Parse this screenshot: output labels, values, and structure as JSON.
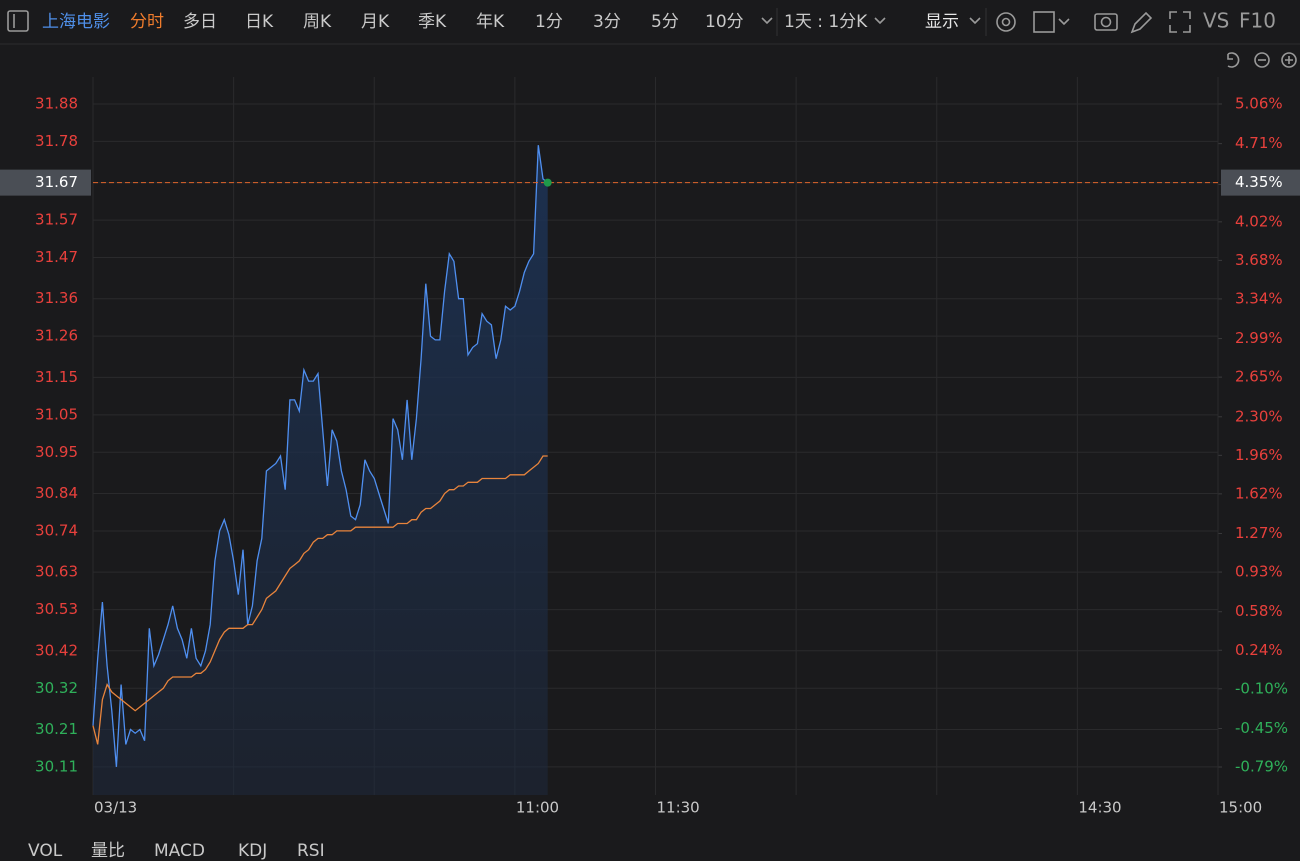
{
  "toolbar": {
    "stock": "上海电影",
    "tabs": [
      "分时",
      "多日",
      "日K",
      "周K",
      "月K",
      "季K",
      "年K",
      "1分",
      "3分",
      "5分",
      "10分"
    ],
    "period": "1天 : 1分K",
    "display": "显示",
    "vs": "VS",
    "f10": "F10"
  },
  "indicator_tabs": [
    "VOL",
    "量比",
    "MACD",
    "KDJ",
    "RSI"
  ],
  "chart_data": {
    "type": "line",
    "x": [
      0,
      1,
      2,
      3,
      4,
      5,
      6,
      7,
      8,
      9,
      10,
      11,
      12,
      13,
      14,
      15,
      16,
      17,
      18,
      19,
      20,
      21,
      22,
      23,
      24,
      25,
      26,
      27,
      28,
      29,
      30,
      31,
      32,
      33,
      34,
      35,
      36,
      37,
      38,
      39,
      40,
      41,
      42,
      43,
      44,
      45,
      46,
      47,
      48,
      49,
      50,
      51,
      52,
      53,
      54,
      55,
      56,
      57,
      58,
      59,
      60,
      61,
      62,
      63,
      64,
      65,
      66,
      67,
      68,
      69,
      70,
      71,
      72,
      73,
      74,
      75,
      76,
      77,
      78,
      79,
      80,
      81,
      82,
      83,
      84,
      85,
      86,
      87,
      88,
      89,
      90,
      91,
      92,
      93,
      94,
      95,
      96,
      97
    ],
    "xlim": [
      0,
      240
    ],
    "xticks": [
      {
        "value": 0,
        "label": "03/13"
      },
      {
        "value": 30,
        "label": null
      },
      {
        "value": 60,
        "label": null
      },
      {
        "value": 90,
        "label": "11:00"
      },
      {
        "value": 120,
        "label": "11:30"
      },
      {
        "value": 150,
        "label": null
      },
      {
        "value": 180,
        "label": null
      },
      {
        "value": 210,
        "label": "14:30"
      },
      {
        "value": 240,
        "label": "15:00"
      }
    ],
    "ylim": [
      30.035,
      31.952
    ],
    "yticks": [
      31.88,
      31.78,
      31.67,
      31.57,
      31.47,
      31.36,
      31.26,
      31.15,
      31.05,
      30.95,
      30.84,
      30.74,
      30.63,
      30.53,
      30.42,
      30.32,
      30.21,
      30.11
    ],
    "y2lim": [
      -1.037,
      5.298
    ],
    "y2ticks": [
      {
        "value": 5.06,
        "label": "5.06%"
      },
      {
        "value": 4.71,
        "label": "4.71%"
      },
      {
        "value": 4.35,
        "label": "4.35%"
      },
      {
        "value": 4.02,
        "label": "4.02%"
      },
      {
        "value": 3.68,
        "label": "3.68%"
      },
      {
        "value": 3.34,
        "label": "3.34%"
      },
      {
        "value": 2.99,
        "label": "2.99%"
      },
      {
        "value": 2.65,
        "label": "2.65%"
      },
      {
        "value": 2.3,
        "label": "2.30%"
      },
      {
        "value": 1.96,
        "label": "1.96%"
      },
      {
        "value": 1.62,
        "label": "1.62%"
      },
      {
        "value": 1.27,
        "label": "1.27%"
      },
      {
        "value": 0.93,
        "label": "0.93%"
      },
      {
        "value": 0.58,
        "label": "0.58%"
      },
      {
        "value": 0.24,
        "label": "0.24%"
      },
      {
        "value": -0.1,
        "label": "-0.10%"
      },
      {
        "value": -0.45,
        "label": "-0.45%"
      },
      {
        "value": -0.79,
        "label": "-0.79%"
      }
    ],
    "grid": true,
    "series": [
      {
        "color": "#4f8ff0",
        "values": [
          30.22,
          30.4,
          30.55,
          30.38,
          30.26,
          30.11,
          30.33,
          30.17,
          30.21,
          30.2,
          30.21,
          30.18,
          30.48,
          30.38,
          30.41,
          30.45,
          30.49,
          30.54,
          30.48,
          30.45,
          30.4,
          30.48,
          30.4,
          30.38,
          30.42,
          30.49,
          30.66,
          30.74,
          30.77,
          30.73,
          30.66,
          30.57,
          30.69,
          30.49,
          30.54,
          30.66,
          30.72,
          30.9,
          30.91,
          30.92,
          30.94,
          30.85,
          31.09,
          31.09,
          31.06,
          31.17,
          31.14,
          31.14,
          31.16,
          31.01,
          30.86,
          31.01,
          30.98,
          30.9,
          30.85,
          30.78,
          30.77,
          30.81,
          30.93,
          30.9,
          30.88,
          30.84,
          30.8,
          30.76,
          31.04,
          31.01,
          30.93,
          31.09,
          30.93,
          31.04,
          31.2,
          31.4,
          31.26,
          31.25,
          31.25,
          31.38,
          31.48,
          31.46,
          31.36,
          31.36,
          31.21,
          31.23,
          31.24,
          31.32,
          31.3,
          31.29,
          31.2,
          31.25,
          31.34,
          31.33,
          31.34,
          31.38,
          31.43,
          31.46,
          31.48,
          31.77,
          31.68,
          31.67
        ]
      },
      {
        "color": "#e8843c",
        "values": [
          30.22,
          30.17,
          30.29,
          30.33,
          30.31,
          30.3,
          30.29,
          30.28,
          30.27,
          30.26,
          30.27,
          30.28,
          30.29,
          30.3,
          30.31,
          30.32,
          30.34,
          30.35,
          30.35,
          30.35,
          30.35,
          30.35,
          30.36,
          30.36,
          30.37,
          30.39,
          30.42,
          30.45,
          30.47,
          30.48,
          30.48,
          30.48,
          30.48,
          30.49,
          30.49,
          30.51,
          30.53,
          30.56,
          30.57,
          30.58,
          30.6,
          30.62,
          30.64,
          30.65,
          30.66,
          30.68,
          30.69,
          30.71,
          30.72,
          30.72,
          30.73,
          30.73,
          30.74,
          30.74,
          30.74,
          30.74,
          30.75,
          30.75,
          30.75,
          30.75,
          30.75,
          30.75,
          30.75,
          30.75,
          30.75,
          30.76,
          30.76,
          30.76,
          30.77,
          30.77,
          30.79,
          30.8,
          30.8,
          30.81,
          30.82,
          30.84,
          30.85,
          30.85,
          30.86,
          30.86,
          30.87,
          30.87,
          30.87,
          30.88,
          30.88,
          30.88,
          30.88,
          30.88,
          30.88,
          30.89,
          30.89,
          30.89,
          30.89,
          30.9,
          30.91,
          30.92,
          30.94,
          30.94
        ]
      }
    ],
    "crosshair_price": 31.67,
    "crosshair_percent": {
      "value": 4.35,
      "label": "4.35%"
    }
  }
}
